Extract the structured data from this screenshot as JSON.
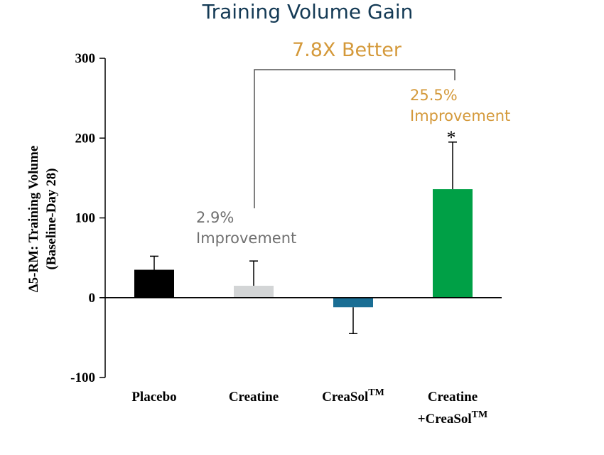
{
  "chart_data": {
    "type": "bar",
    "title": "Training Volume Gain",
    "ylabel_lines": [
      "Δ5-RM: Training Volume",
      "(Baseline-Day 28)"
    ],
    "xlabel": "",
    "ylim": [
      -100,
      300
    ],
    "yticks": [
      "300",
      "200",
      "100",
      "0",
      "-100"
    ],
    "ytick_values": [
      300,
      200,
      100,
      0,
      -100
    ],
    "categories": [
      {
        "line1": "Placebo",
        "line2": "",
        "sup": ""
      },
      {
        "line1": "Creatine",
        "line2": "",
        "sup": ""
      },
      {
        "line1": "CreaSol",
        "line2": "",
        "sup": "TM"
      },
      {
        "line1": "Creatine",
        "line2": "+CreaSol",
        "sup": "TM"
      }
    ],
    "values": [
      35,
      15,
      -12,
      136
    ],
    "error_bars": [
      52,
      46,
      -45,
      195
    ],
    "colors": [
      "#000000",
      "#d3d5d6",
      "#1a6e94",
      "#00a046"
    ],
    "annotations": {
      "comparison": "7.8X Better",
      "creatine_pct": "2.9%",
      "creatine_text": "Improvement",
      "combo_pct": "25.5%",
      "combo_text": "Improvement",
      "significance": "*"
    },
    "grid": false,
    "legend": "none"
  }
}
